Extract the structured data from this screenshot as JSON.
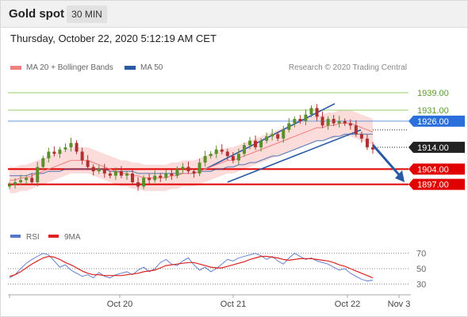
{
  "header": {
    "title": "Gold spot",
    "timeframe": "30 MIN"
  },
  "timestamp": "Thursday, October 22, 2020 5:12:19 AM CET",
  "legend": [
    {
      "label": "MA 20 + Bollinger Bands",
      "color": "#f08080"
    },
    {
      "label": "MA 50",
      "color": "#2a5aa6"
    }
  ],
  "copyright": "Research © 2020 Trading Central",
  "colors": {
    "resistance_green": "#99cc66",
    "support_red": "#e00000",
    "ma50": "#2a5aa6",
    "ma20": "#f08080",
    "band_fill": "#fbd5d5",
    "candle_up": "#5a8f2a",
    "candle_down": "#b03030",
    "arrow": "#2a5aa6"
  },
  "chart_data": [
    {
      "type": "candlestick",
      "title": "Gold spot",
      "ylim": [
        1878,
        1947
      ],
      "x_ticks": [
        "Oct 20",
        "Oct 21",
        "Oct 22",
        "Nov 3"
      ],
      "levels": [
        {
          "label": "1939.00",
          "value": 1939,
          "kind": "resistance",
          "color": "#99cc66"
        },
        {
          "label": "1931.00",
          "value": 1931,
          "kind": "resistance",
          "color": "#99cc66"
        },
        {
          "label": "1926.00",
          "value": 1926,
          "kind": "pivot",
          "color": "#6699dd"
        },
        {
          "label": "1914.00",
          "value": 1914,
          "kind": "last",
          "color": "#222222"
        },
        {
          "label": "1904.00",
          "value": 1904,
          "kind": "support",
          "color": "#e00000"
        },
        {
          "label": "1897.00",
          "value": 1897,
          "kind": "support",
          "color": "#e00000"
        }
      ],
      "series": [
        {
          "name": "Price close",
          "values": [
            1897,
            1898,
            1899,
            1900,
            1898,
            1905,
            1909,
            1912,
            1911,
            1913,
            1914,
            1916,
            1912,
            1908,
            1905,
            1903,
            1904,
            1902,
            1901,
            1903,
            1901,
            1902,
            1898,
            1896,
            1900,
            1899,
            1901,
            1900,
            1902,
            1901,
            1904,
            1905,
            1903,
            1902,
            1907,
            1910,
            1911,
            1913,
            1912,
            1910,
            1908,
            1911,
            1915,
            1917,
            1914,
            1917,
            1919,
            1920,
            1918,
            1922,
            1925,
            1927,
            1926,
            1929,
            1932,
            1928,
            1924,
            1927,
            1925,
            1926,
            1925,
            1924,
            1920,
            1918,
            1914,
            1913
          ]
        },
        {
          "name": "MA 20",
          "values": [
            1899,
            1899,
            1900,
            1900,
            1901,
            1902,
            1903,
            1904,
            1905,
            1906,
            1907,
            1908,
            1908,
            1908,
            1908,
            1907,
            1906,
            1905,
            1904,
            1903,
            1902,
            1902,
            1901,
            1901,
            1900,
            1900,
            1900,
            1900,
            1900,
            1901,
            1901,
            1902,
            1902,
            1902,
            1903,
            1904,
            1905,
            1906,
            1907,
            1908,
            1908,
            1909,
            1910,
            1911,
            1912,
            1913,
            1914,
            1915,
            1916,
            1917,
            1918,
            1919,
            1920,
            1921,
            1922,
            1923,
            1923,
            1924,
            1924,
            1925,
            1925,
            1925,
            1924,
            1923,
            1922,
            1921
          ]
        },
        {
          "name": "MA 50",
          "values": [
            1901,
            1901,
            1901,
            1901,
            1902,
            1902,
            1902,
            1903,
            1903,
            1903,
            1904,
            1904,
            1904,
            1904,
            1904,
            1904,
            1904,
            1904,
            1903,
            1903,
            1903,
            1903,
            1903,
            1902,
            1902,
            1902,
            1902,
            1902,
            1902,
            1902,
            1902,
            1902,
            1902,
            1902,
            1903,
            1903,
            1903,
            1904,
            1904,
            1905,
            1905,
            1906,
            1906,
            1907,
            1907,
            1908,
            1909,
            1910,
            1910,
            1911,
            1912,
            1913,
            1914,
            1915,
            1916,
            1917,
            1917,
            1918,
            1919,
            1919,
            1920,
            1920,
            1920,
            1920,
            1920,
            1920
          ]
        }
      ]
    },
    {
      "type": "line",
      "title": "RSI",
      "ylim": [
        20,
        80
      ],
      "y_ticks": [
        "70",
        "50",
        "30"
      ],
      "series": [
        {
          "name": "RSI",
          "color": "#5577cc",
          "values": [
            38,
            42,
            50,
            57,
            62,
            66,
            70,
            68,
            60,
            52,
            55,
            48,
            44,
            40,
            42,
            38,
            45,
            40,
            38,
            42,
            44,
            46,
            42,
            48,
            52,
            46,
            50,
            58,
            62,
            56,
            54,
            60,
            64,
            55,
            48,
            52,
            46,
            50,
            56,
            62,
            60,
            64,
            66,
            68,
            70,
            67,
            62,
            66,
            60,
            56,
            64,
            70,
            66,
            62,
            64,
            60,
            58,
            56,
            52,
            48,
            50,
            44,
            40,
            36,
            34,
            35
          ]
        },
        {
          "name": "9MA",
          "color": "#dd2222",
          "values": [
            40,
            42,
            46,
            51,
            56,
            60,
            64,
            66,
            65,
            62,
            58,
            55,
            51,
            47,
            44,
            42,
            42,
            41,
            41,
            41,
            41,
            42,
            43,
            44,
            46,
            47,
            48,
            51,
            54,
            55,
            56,
            57,
            58,
            58,
            56,
            54,
            52,
            51,
            51,
            53,
            55,
            57,
            59,
            62,
            64,
            66,
            66,
            65,
            64,
            62,
            61,
            62,
            63,
            63,
            63,
            62,
            61,
            60,
            58,
            55,
            53,
            50,
            47,
            44,
            41,
            38
          ]
        }
      ]
    }
  ],
  "indicator_legend": [
    {
      "label": "RSI",
      "color": "#5577cc"
    },
    {
      "label": "9MA",
      "color": "#dd2222"
    }
  ]
}
